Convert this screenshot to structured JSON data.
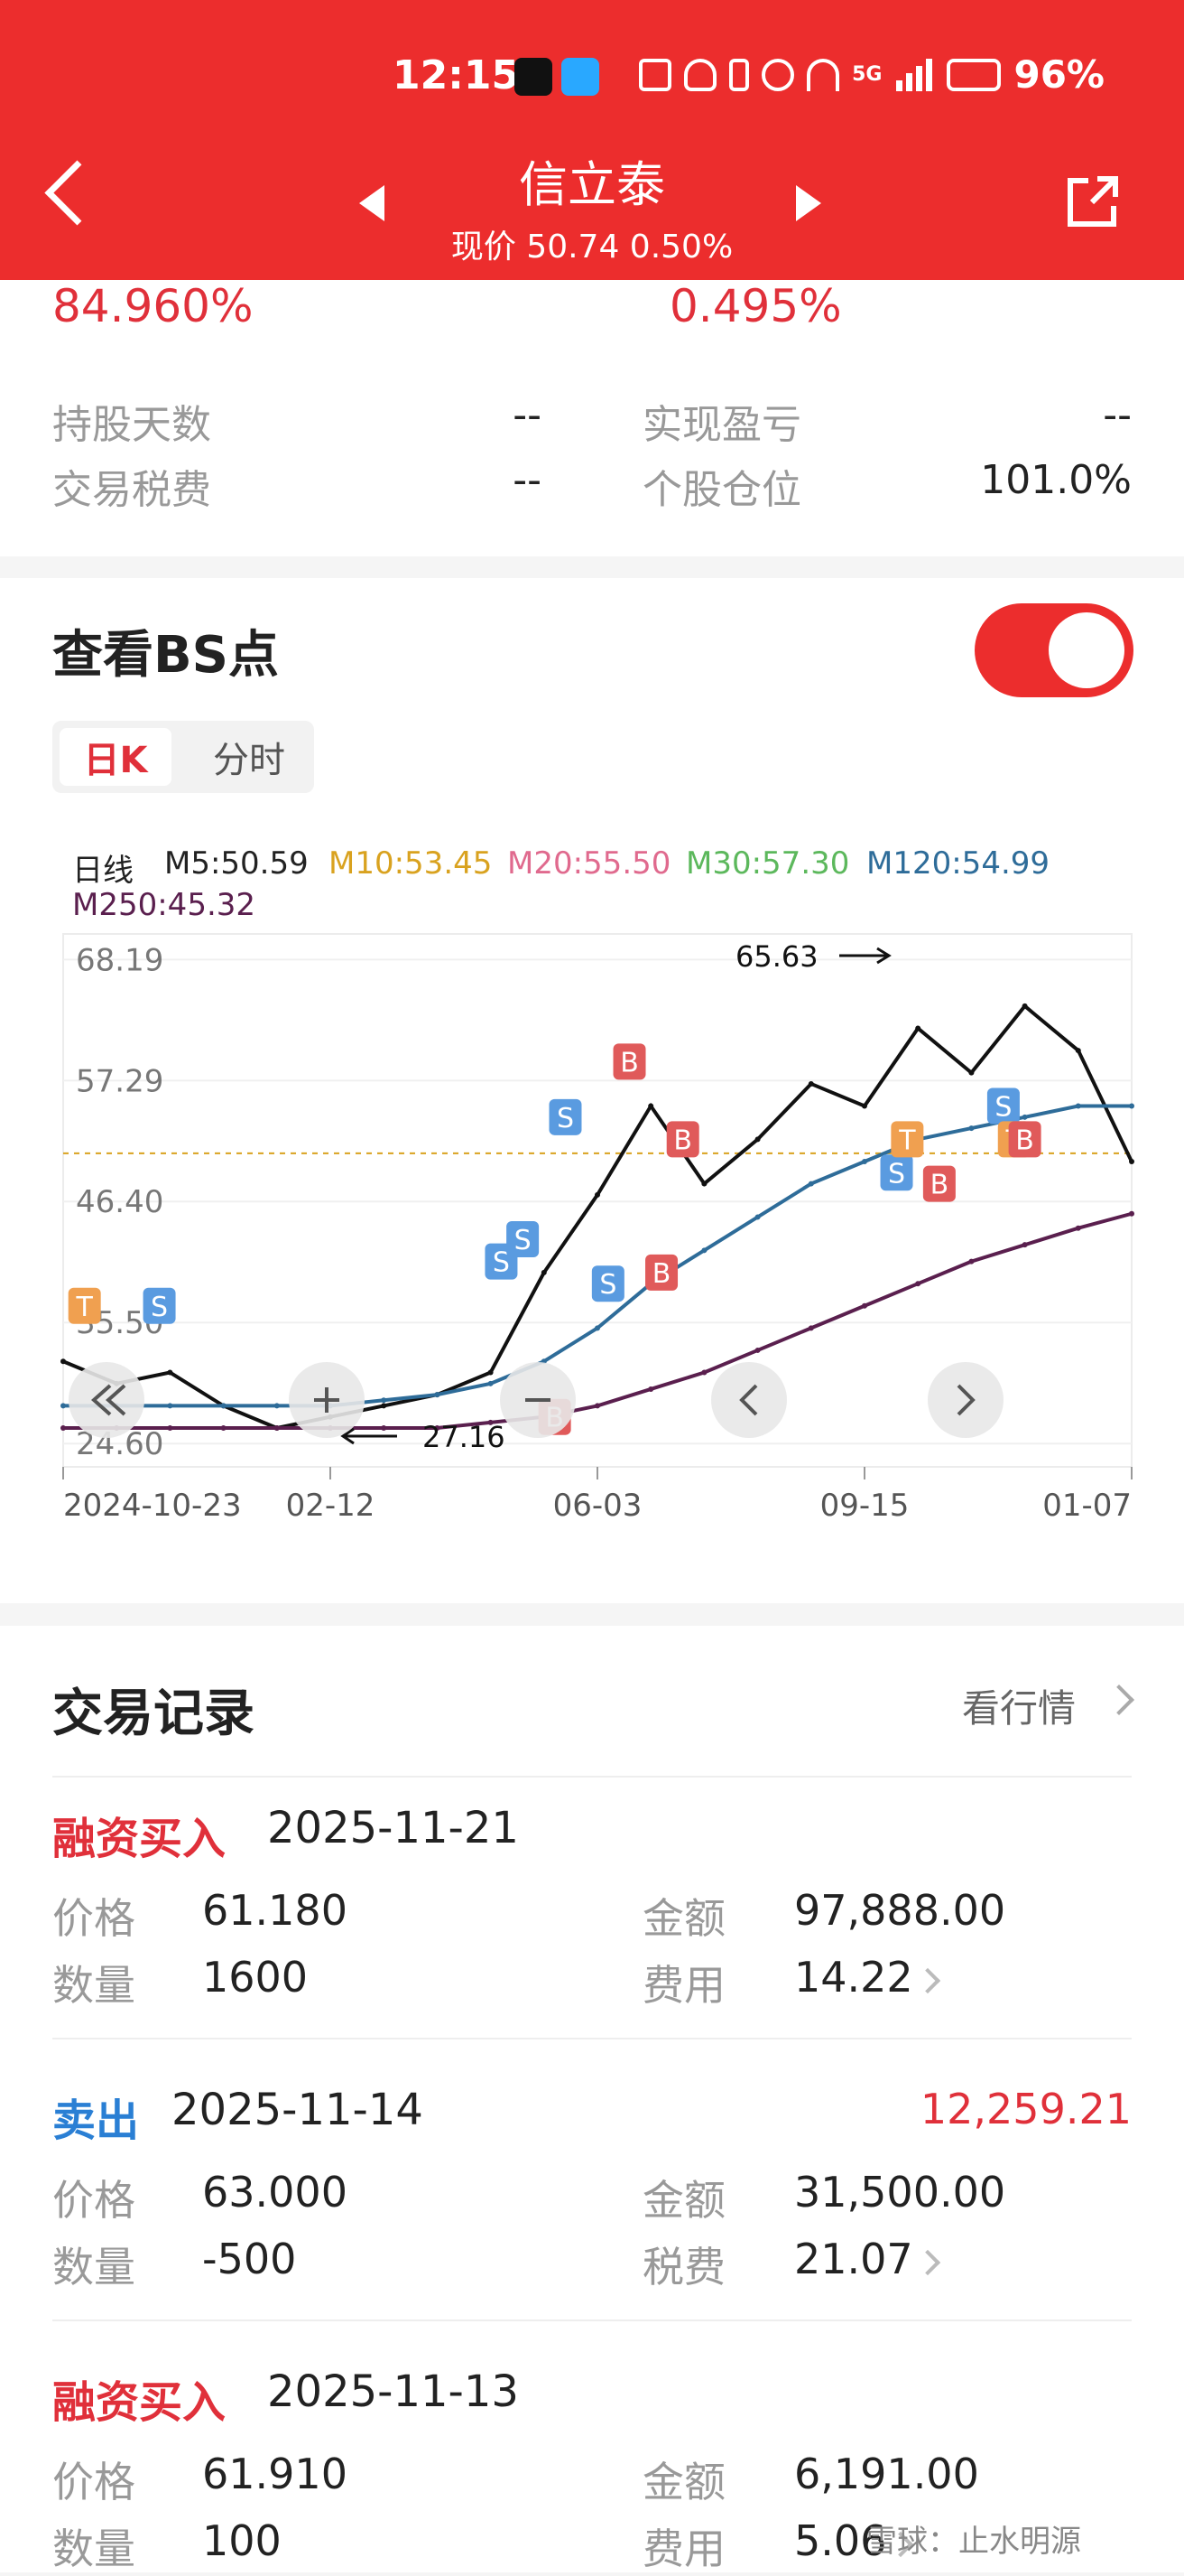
{
  "status": {
    "time": "12:15",
    "battery": "96%",
    "network": "5G"
  },
  "header": {
    "title": "信立泰",
    "price_line": "现价 50.74 0.50%"
  },
  "summary": {
    "pct_left": "84.960%",
    "pct_right": "0.495%",
    "rows": [
      {
        "label": "持股天数",
        "value": "--",
        "label2": "实现盈亏",
        "value2": "--"
      },
      {
        "label": "交易税费",
        "value": "--",
        "label2": "个股仓位",
        "value2": "101.0%"
      }
    ]
  },
  "bs": {
    "title": "查看BS点",
    "toggle_on": true,
    "tabs": [
      "日K",
      "分时"
    ],
    "legend": {
      "day": "日线",
      "m5": "M5:50.59",
      "m10": "M10:53.45",
      "m20": "M20:55.50",
      "m30": "M30:57.30",
      "m120": "M120:54.99",
      "m250": "M250:45.32"
    }
  },
  "chart_data": {
    "type": "line",
    "title": "",
    "x_ticks": [
      "2024-10-23",
      "02-12",
      "06-03",
      "09-15",
      "01-07"
    ],
    "y_ticks": [
      68.19,
      57.29,
      46.4,
      35.5,
      24.6
    ],
    "y_tick_labels": [
      "68.19",
      "57.29",
      "46.40",
      "35.50",
      "24.60"
    ],
    "ylim": [
      22.5,
      70.5
    ],
    "reference_price": 50.74,
    "annotations": {
      "high": "65.63",
      "low": "27.16"
    },
    "x": [
      0,
      5,
      10,
      15,
      20,
      25,
      30,
      35,
      40,
      45,
      50,
      55,
      60,
      65,
      70,
      75,
      80,
      85,
      90,
      95,
      100
    ],
    "series": [
      {
        "name": "日线",
        "color": "#111111",
        "values": [
          32,
          30,
          31,
          28,
          26,
          27,
          28,
          29,
          31,
          40,
          47,
          55,
          48,
          52,
          57,
          55,
          62,
          58,
          64,
          60,
          50
        ]
      },
      {
        "name": "M120",
        "color": "#2e6c99",
        "values": [
          28,
          28,
          28,
          28,
          28,
          28,
          28.5,
          29,
          30,
          32,
          35,
          39,
          42,
          45,
          48,
          50,
          52,
          53,
          54,
          55,
          55
        ]
      },
      {
        "name": "M250",
        "color": "#5a1f4e",
        "values": [
          26,
          26,
          26,
          26,
          26,
          26,
          26,
          26,
          26.5,
          27,
          28,
          29.5,
          31,
          33,
          35,
          37,
          39,
          41,
          42.5,
          44,
          45.3
        ]
      }
    ],
    "bs_points": [
      {
        "label": "T",
        "x": 2,
        "y": 37
      },
      {
        "label": "S",
        "x": 9,
        "y": 37
      },
      {
        "label": "S",
        "x": 41,
        "y": 41
      },
      {
        "label": "S",
        "x": 43,
        "y": 43
      },
      {
        "label": "S",
        "x": 47,
        "y": 54
      },
      {
        "label": "B",
        "x": 53,
        "y": 59
      },
      {
        "label": "B",
        "x": 58,
        "y": 52
      },
      {
        "label": "S",
        "x": 51,
        "y": 39
      },
      {
        "label": "B",
        "x": 56,
        "y": 40
      },
      {
        "label": "B",
        "x": 46,
        "y": 27
      },
      {
        "label": "S",
        "x": 78,
        "y": 49
      },
      {
        "label": "T",
        "x": 79,
        "y": 52
      },
      {
        "label": "B",
        "x": 82,
        "y": 48
      },
      {
        "label": "S",
        "x": 88,
        "y": 55
      },
      {
        "label": "T",
        "x": 89,
        "y": 52
      },
      {
        "label": "B",
        "x": 90,
        "y": 52
      }
    ]
  },
  "trades": {
    "title": "交易记录",
    "more": "看行情",
    "records": [
      {
        "type": "融资买入",
        "type_color": "#e0303a",
        "date": "2025-11-21",
        "pl": "",
        "l1": "价格",
        "v1": "61.180",
        "l2": "金额",
        "v2": "97,888.00",
        "l3": "数量",
        "v3": "1600",
        "l4": "费用",
        "v4": "14.22"
      },
      {
        "type": "卖出",
        "type_color": "#2a7fd4",
        "date": "2025-11-14",
        "pl": "12,259.21",
        "l1": "价格",
        "v1": "63.000",
        "l2": "金额",
        "v2": "31,500.00",
        "l3": "数量",
        "v3": "-500",
        "l4": "税费",
        "v4": "21.07"
      },
      {
        "type": "融资买入",
        "type_color": "#e0303a",
        "date": "2025-11-13",
        "pl": "",
        "l1": "价格",
        "v1": "61.910",
        "l2": "金额",
        "v2": "6,191.00",
        "l3": "数量",
        "v3": "100",
        "l4": "费用",
        "v4": "5.06"
      }
    ],
    "watermark": "雪球：止水明源"
  },
  "colors": {
    "brand_red": "#ec2d2d",
    "buy_red": "#e0303a",
    "sell_blue": "#2a7fd4"
  }
}
